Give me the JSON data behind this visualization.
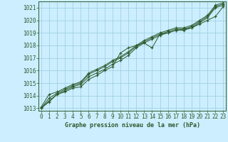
{
  "background_color": "#cceeff",
  "grid_color": "#99ccdd",
  "line_color": "#2d5a2d",
  "xlabel": "Graphe pression niveau de la mer (hPa)",
  "ylim": [
    1012.8,
    1021.5
  ],
  "xlim": [
    -0.3,
    23.3
  ],
  "yticks": [
    1013,
    1014,
    1015,
    1016,
    1017,
    1018,
    1019,
    1020,
    1021
  ],
  "xticks": [
    0,
    1,
    2,
    3,
    4,
    5,
    6,
    7,
    8,
    9,
    10,
    11,
    12,
    13,
    14,
    15,
    16,
    17,
    18,
    19,
    20,
    21,
    22,
    23
  ],
  "series": [
    [
      1013.0,
      1013.5,
      1014.1,
      1014.3,
      1014.6,
      1014.7,
      1015.3,
      1015.6,
      1016.0,
      1016.3,
      1017.4,
      1017.8,
      1018.0,
      1018.2,
      1017.8,
      1018.9,
      1019.0,
      1019.2,
      1019.3,
      1019.4,
      1019.7,
      1020.0,
      1020.3,
      1021.1
    ],
    [
      1013.0,
      1013.6,
      1014.1,
      1014.4,
      1014.7,
      1014.9,
      1015.5,
      1015.8,
      1016.1,
      1016.5,
      1016.8,
      1017.2,
      1017.8,
      1018.2,
      1018.5,
      1018.8,
      1019.0,
      1019.2,
      1019.2,
      1019.4,
      1019.8,
      1020.2,
      1021.0,
      1021.2
    ],
    [
      1013.0,
      1013.8,
      1014.2,
      1014.5,
      1014.8,
      1015.0,
      1015.7,
      1016.0,
      1016.3,
      1016.7,
      1017.0,
      1017.4,
      1017.9,
      1018.3,
      1018.6,
      1018.9,
      1019.1,
      1019.3,
      1019.3,
      1019.5,
      1019.9,
      1020.3,
      1021.1,
      1021.3
    ],
    [
      1013.1,
      1014.1,
      1014.3,
      1014.6,
      1014.9,
      1015.1,
      1015.8,
      1016.1,
      1016.4,
      1016.8,
      1017.1,
      1017.5,
      1018.0,
      1018.4,
      1018.7,
      1019.0,
      1019.2,
      1019.4,
      1019.4,
      1019.6,
      1020.0,
      1020.4,
      1021.2,
      1021.4
    ]
  ],
  "marker": "+",
  "markersize": 3.5,
  "linewidth": 0.7,
  "tick_fontsize": 5.5,
  "xlabel_fontsize": 6.0
}
